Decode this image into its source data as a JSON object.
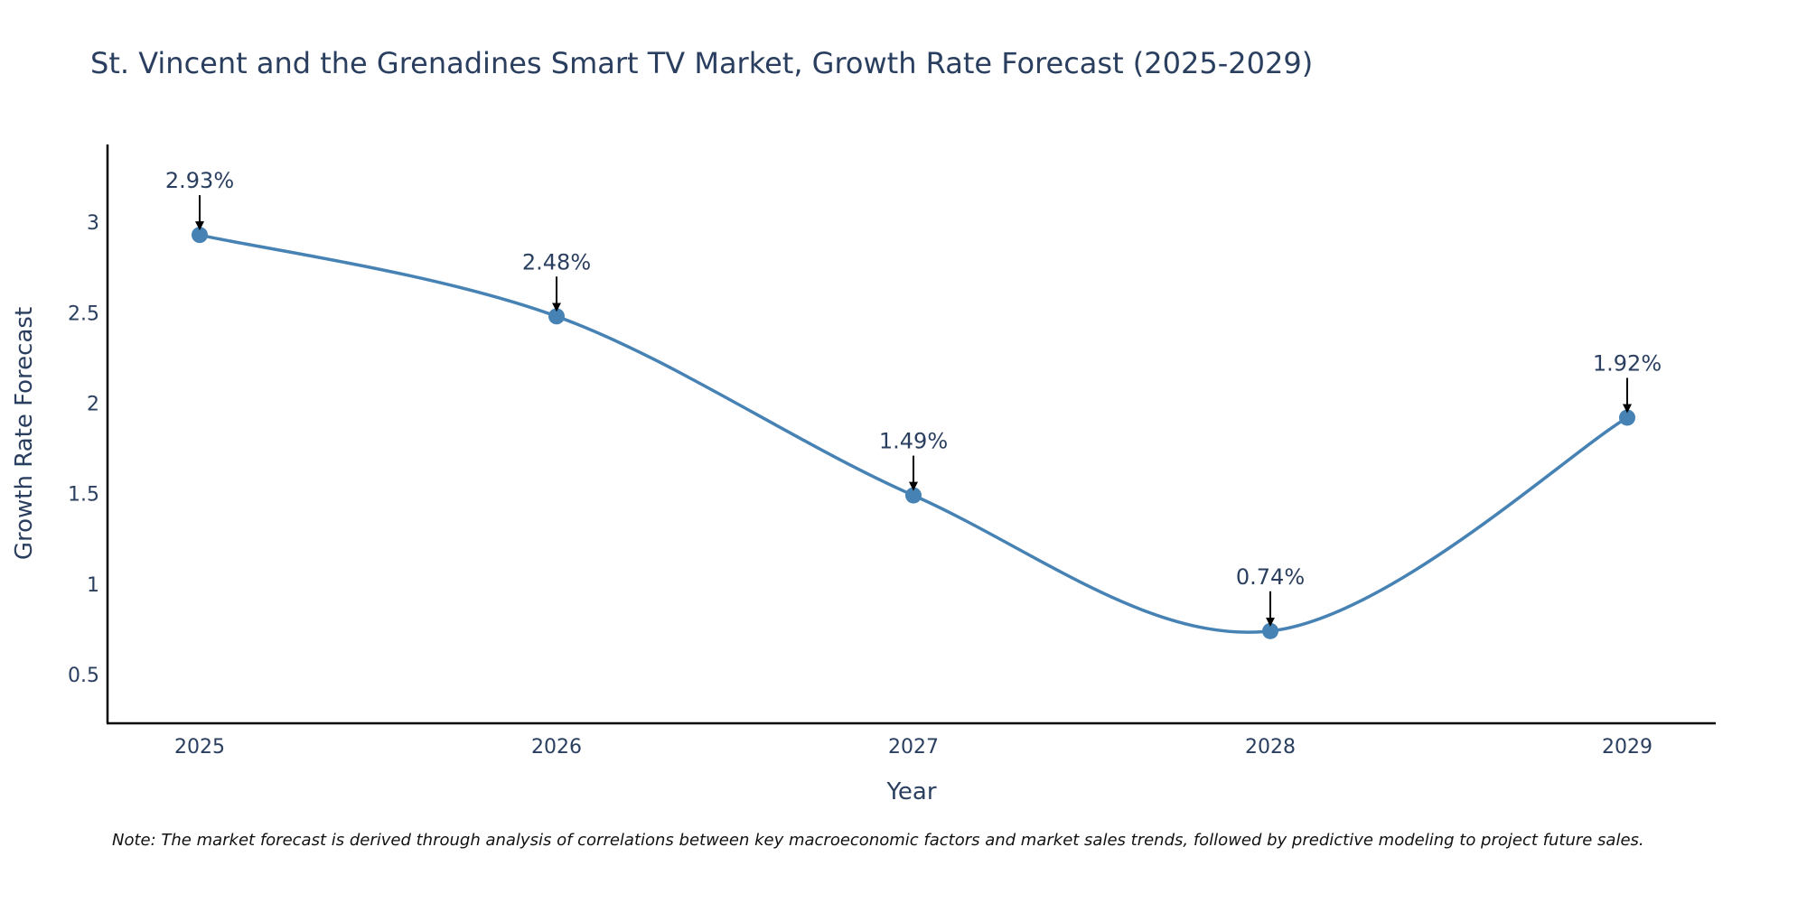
{
  "chart_data": {
    "type": "line",
    "title": "St. Vincent and the Grenadines Smart TV Market, Growth Rate Forecast (2025-2029)",
    "xlabel": "Year",
    "ylabel": "Growth Rate Forecast",
    "categories": [
      "2025",
      "2026",
      "2027",
      "2028",
      "2029"
    ],
    "series": [
      {
        "name": "Growth Rate Forecast",
        "values": [
          2.93,
          2.48,
          1.49,
          0.74,
          1.92
        ],
        "labels": [
          "2.93%",
          "2.48%",
          "1.49%",
          "0.74%",
          "1.92%"
        ]
      }
    ],
    "ylim": [
      0.23,
      3.43
    ],
    "yticks": [
      0.5,
      1,
      1.5,
      2,
      2.5,
      3
    ],
    "ytick_labels": [
      "0.5",
      "1",
      "1.5",
      "2",
      "2.5",
      "3"
    ],
    "grid": false,
    "line_shape": "spline",
    "colors": {
      "line": "#4682b4",
      "marker": "#4682b4",
      "text": "#2a3f5f",
      "axis": "#000000",
      "arrow": "#000000"
    }
  },
  "note": "Note: The market forecast is derived through analysis of correlations between key macroeconomic factors and market sales trends, followed by predictive modeling to project future sales."
}
